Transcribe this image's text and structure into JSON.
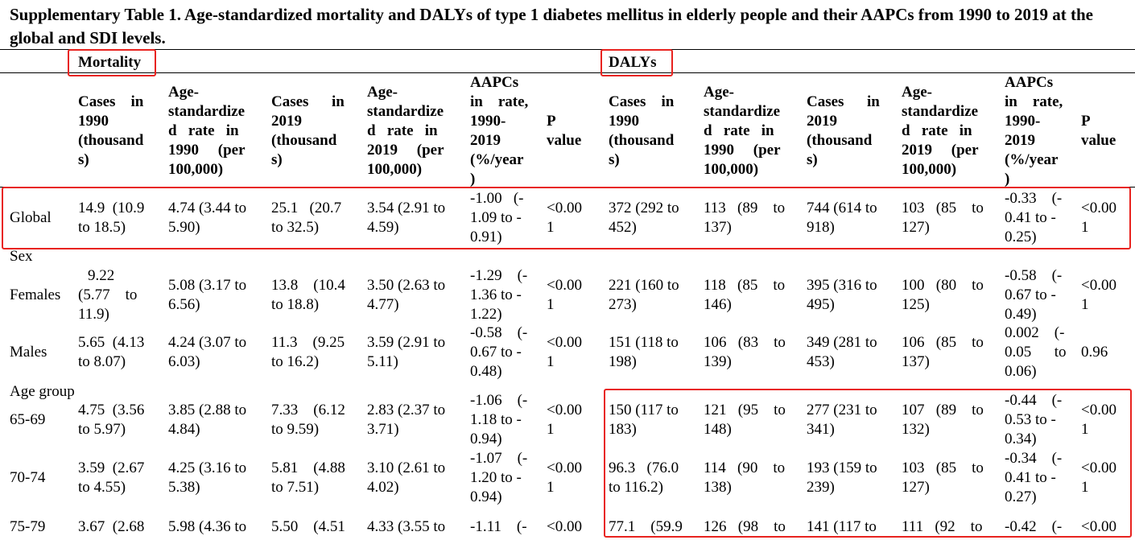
{
  "caption": "Supplementary Table 1. Age-standardized mortality and DALYs of type 1 diabetes mellitus in elderly people and their AAPCs from 1990 to 2019 at the global and SDI levels.",
  "groups": {
    "mortality": "Mortality",
    "dalys": "DALYs"
  },
  "headers": {
    "cases1990": [
      "Cases    in",
      "1990",
      "(thousand",
      "s)"
    ],
    "rate1990": [
      "Age-",
      "standardize",
      "d   rate   in",
      "1990     (per",
      "100,000)"
    ],
    "cases2019": [
      "Cases      in",
      "2019",
      "(thousand",
      "s)"
    ],
    "rate2019": [
      "Age-",
      "standardize",
      "d   rate   in",
      "2019     (per",
      "100,000)"
    ],
    "aapc": [
      "AAPCs",
      "in    rate,",
      "1990-",
      "2019",
      "(%/year",
      ")"
    ],
    "pvalue": [
      "P",
      "value"
    ]
  },
  "rows": {
    "global": {
      "label": "Global",
      "cells": [
        [
          "14.9  (10.9",
          "to 18.5)"
        ],
        [
          "4.74 (3.44 to",
          "5.90)"
        ],
        [
          "25.1   (20.7",
          "to 32.5)"
        ],
        [
          "3.54 (2.91 to",
          "4.59)"
        ],
        [
          "-1.00   (-",
          "1.09 to -",
          "0.91)"
        ],
        [
          "<0.00",
          "1"
        ],
        [
          "372 (292 to",
          "452)"
        ],
        [
          "113   (89    to",
          "137)"
        ],
        [
          "744 (614 to",
          "918)"
        ],
        [
          "103   (85    to",
          "127)"
        ],
        [
          "-0.33    (-",
          "0.41 to -",
          "0.25)"
        ],
        [
          "<0.00",
          "1"
        ]
      ]
    },
    "sex": {
      "label": "Sex"
    },
    "females": {
      "label": "Females",
      "cells": [
        [
          "9.22",
          "(5.77    to",
          "11.9)"
        ],
        [
          "5.08 (3.17 to",
          "6.56)"
        ],
        [
          "13.8    (10.4",
          "to 18.8)"
        ],
        [
          "3.50 (2.63 to",
          "4.77)"
        ],
        [
          "-1.29    (-",
          "1.36 to -",
          "1.22)"
        ],
        [
          "<0.00",
          "1"
        ],
        [
          "221 (160 to",
          "273)"
        ],
        [
          "118   (85    to",
          "146)"
        ],
        [
          "395 (316 to",
          "495)"
        ],
        [
          "100   (80    to",
          "125)"
        ],
        [
          "-0.58    (-",
          "0.67 to -",
          "0.49)"
        ],
        [
          "<0.00",
          "1"
        ]
      ]
    },
    "males": {
      "label": "Males",
      "cells": [
        [
          "5.65  (4.13",
          "to 8.07)"
        ],
        [
          "4.24 (3.07 to",
          "6.03)"
        ],
        [
          "11.3    (9.25",
          "to 16.2)"
        ],
        [
          "3.59 (2.91 to",
          "5.11)"
        ],
        [
          "-0.58    (-",
          "0.67 to -",
          "0.48)"
        ],
        [
          "<0.00",
          "1"
        ],
        [
          "151 (118 to",
          "198)"
        ],
        [
          "106   (83    to",
          "139)"
        ],
        [
          "349 (281 to",
          "453)"
        ],
        [
          "106   (85    to",
          "137)"
        ],
        [
          "0.002    (-",
          "0.05      to",
          "0.06)"
        ],
        [
          "0.96"
        ]
      ]
    },
    "agegroup": {
      "label": "Age group"
    },
    "age6569": {
      "label": "65-69",
      "cells": [
        [
          "4.75  (3.56",
          "to 5.97)"
        ],
        [
          "3.85 (2.88 to",
          "4.84)"
        ],
        [
          "7.33    (6.12",
          "to 9.59)"
        ],
        [
          "2.83 (2.37 to",
          "3.71)"
        ],
        [
          "-1.06    (-",
          "1.18 to -",
          "0.94)"
        ],
        [
          "<0.00",
          "1"
        ],
        [
          "150 (117 to",
          "183)"
        ],
        [
          "121   (95    to",
          "148)"
        ],
        [
          "277 (231 to",
          "341)"
        ],
        [
          "107   (89    to",
          "132)"
        ],
        [
          "-0.44    (-",
          "0.53 to -",
          "0.34)"
        ],
        [
          "<0.00",
          "1"
        ]
      ]
    },
    "age7074": {
      "label": "70-74",
      "cells": [
        [
          "3.59  (2.67",
          "to 4.55)"
        ],
        [
          "4.25 (3.16 to",
          "5.38)"
        ],
        [
          "5.81    (4.88",
          "to 7.51)"
        ],
        [
          "3.10 (2.61 to",
          "4.02)"
        ],
        [
          "-1.07    (-",
          "1.20 to -",
          "0.94)"
        ],
        [
          "<0.00",
          "1"
        ],
        [
          "96.3   (76.0",
          "to 116.2)"
        ],
        [
          "114   (90    to",
          "138)"
        ],
        [
          "193 (159 to",
          "239)"
        ],
        [
          "103   (85    to",
          "127)"
        ],
        [
          "-0.34    (-",
          "0.41 to -",
          "0.27)"
        ],
        [
          "<0.00",
          "1"
        ]
      ]
    },
    "age7579": {
      "label": "75-79",
      "cells": [
        [
          "3.67  (2.68"
        ],
        [
          "5.98 (4.36 to"
        ],
        [
          "5.50    (4.51"
        ],
        [
          "4.33 (3.55 to"
        ],
        [
          "-1.11    (-"
        ],
        [
          "<0.00"
        ],
        [
          "77.1    (59.9"
        ],
        [
          "126   (98    to"
        ],
        [
          "141 (117 to"
        ],
        [
          "111   (92    to"
        ],
        [
          "-0.42    (-"
        ],
        [
          "<0.00"
        ]
      ]
    }
  }
}
